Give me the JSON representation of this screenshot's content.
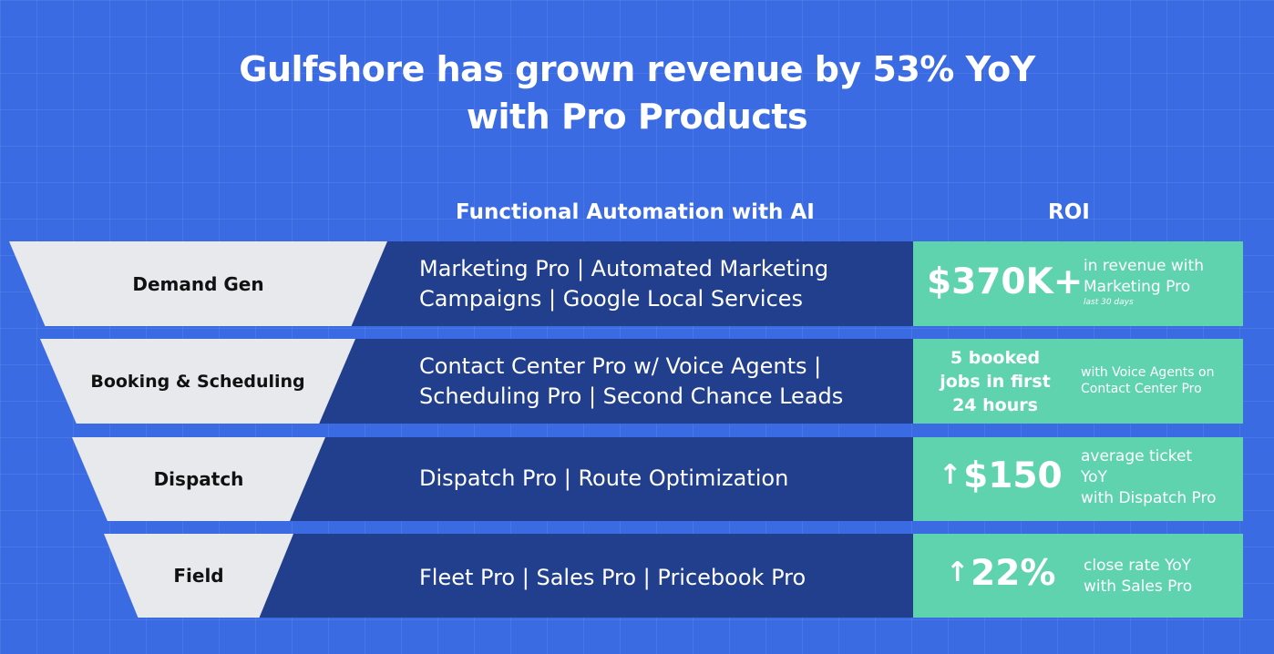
{
  "title": {
    "line1": "Gulfshore has grown revenue by 53% YoY",
    "line2": "with Pro Products"
  },
  "columns": {
    "automation": "Functional Automation with AI",
    "roi": "ROI"
  },
  "rows": [
    {
      "stage": "Demand Gen",
      "automation_line1": "Marketing Pro | Automated Marketing",
      "automation_line2": "Campaigns | Google Local Services",
      "roi_value": "$370K+",
      "roi_desc_line1": "in revenue with",
      "roi_desc_line2": "Marketing Pro",
      "roi_note": "last 30 days"
    },
    {
      "stage": "Booking & Scheduling",
      "automation_line1": "Contact Center Pro w/ Voice Agents |",
      "automation_line2": "Scheduling Pro | Second Chance Leads",
      "roi_value_line1": "5 booked",
      "roi_value_line2": "jobs in first",
      "roi_value_line3": "24 hours",
      "roi_desc_line1": "with Voice Agents on",
      "roi_desc_line2": "Contact Center Pro"
    },
    {
      "stage": "Dispatch",
      "automation_line1": "Dispatch Pro | Route Optimization",
      "roi_arrow": "↑",
      "roi_value": "$150",
      "roi_desc_line1": "average ticket",
      "roi_desc_line2": "YoY",
      "roi_desc_line3": "with Dispatch Pro"
    },
    {
      "stage": "Field",
      "automation_line1": "Fleet Pro | Sales Pro | Pricebook Pro",
      "roi_arrow": "↑",
      "roi_value": "22%",
      "roi_desc_line1": "close rate YoY",
      "roi_desc_line2": "with Sales Pro"
    }
  ],
  "colors": {
    "background": "#3b6be3",
    "band": "#213f8c",
    "roi_box": "#5fd3ad",
    "funnel": "#e8e9ec"
  }
}
